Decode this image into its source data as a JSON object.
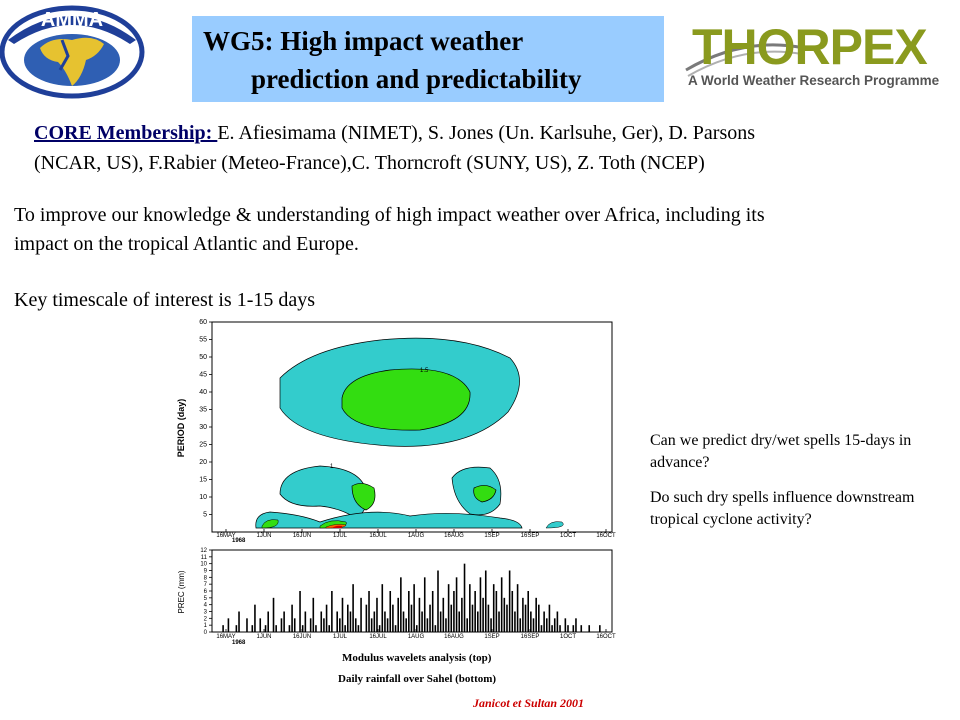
{
  "header": {
    "amma_logo_text": "AMMA",
    "title_line1": "WG5: High impact weather",
    "title_line2": "prediction and predictability",
    "thorpex_logo": "THORPEX",
    "thorpex_tagline": "A World Weather Research Programme"
  },
  "membership": {
    "label": "CORE Membership: ",
    "line1": "E. Afiesimama (NIMET), S. Jones (Un. Karlsuhe, Ger), D. Parsons",
    "line2": "(NCAR, US), F.Rabier (Meteo-France),C. Thorncroft (SUNY, US),  Z. Toth (NCEP)"
  },
  "objective": {
    "line1": "To improve our knowledge & understanding of high impact weather over Africa, including its",
    "line2": "impact on the tropical Atlantic and Europe.",
    "timescale": "Key timescale of interest is 1-15 days"
  },
  "questions": {
    "q1_line1": "Can we predict dry/wet spells 15-days in",
    "q1_line2": "advance?",
    "q2_line1": "Do such dry spells influence downstream",
    "q2_line2": "tropical cyclone activity?"
  },
  "figure": {
    "caption_top": "Modulus wavelets analysis (top)",
    "caption_bottom": "Daily rainfall over Sahel (bottom)",
    "credit": "Janicot et Sultan 2001"
  },
  "chart_data": [
    {
      "type": "heatmap",
      "ylabel": "PERIOD (day)",
      "yticks": [
        5,
        10,
        15,
        20,
        25,
        30,
        35,
        40,
        45,
        50,
        55,
        60
      ],
      "ylim": [
        0,
        60
      ],
      "xticks": [
        "16MAY",
        "1JUN",
        "16JUN",
        "1JUL",
        "16JUL",
        "1AUG",
        "16AUG",
        "1SEP",
        "16SEP",
        "1OCT",
        "16OCT"
      ],
      "xsub": "1968",
      "contour_labels": [
        "1",
        "1.5"
      ],
      "colors": {
        "level1": "#33cccc",
        "level2": "#33dd11",
        "high": "#ff6600",
        "extreme": "#cc0000"
      }
    },
    {
      "type": "bar",
      "ylabel": "PREC (mm)",
      "yticks": [
        0,
        1,
        2,
        3,
        4,
        5,
        6,
        7,
        8,
        9,
        10,
        11,
        12
      ],
      "ylim": [
        0,
        12
      ],
      "xticks": [
        "16MAY",
        "1JUN",
        "16JUN",
        "1JUL",
        "16JUL",
        "1AUG",
        "16AUG",
        "1SEP",
        "16SEP",
        "1OCT",
        "16OCT"
      ],
      "xsub": "1968",
      "values": [
        0,
        0,
        1,
        0,
        2,
        0,
        0,
        1,
        3,
        0,
        0,
        2,
        0,
        1,
        4,
        0,
        2,
        0,
        1,
        3,
        0,
        5,
        1,
        0,
        2,
        3,
        0,
        1,
        4,
        2,
        0,
        6,
        1,
        3,
        0,
        2,
        5,
        1,
        0,
        3,
        2,
        4,
        1,
        6,
        0,
        3,
        2,
        5,
        1,
        4,
        3,
        7,
        2,
        1,
        5,
        0,
        4,
        6,
        2,
        3,
        5,
        1,
        7,
        3,
        2,
        6,
        4,
        1,
        5,
        8,
        3,
        2,
        6,
        4,
        7,
        1,
        5,
        3,
        8,
        2,
        4,
        6,
        1,
        9,
        3,
        5,
        2,
        7,
        4,
        6,
        8,
        3,
        5,
        10,
        2,
        7,
        4,
        6,
        3,
        8,
        5,
        9,
        4,
        2,
        7,
        6,
        3,
        8,
        5,
        4,
        9,
        6,
        3,
        7,
        2,
        5,
        4,
        6,
        3,
        2,
        5,
        4,
        1,
        3,
        2,
        4,
        1,
        2,
        3,
        1,
        0,
        2,
        1,
        0,
        1,
        2,
        0,
        1,
        0,
        0,
        1,
        0,
        0,
        0,
        1,
        0,
        0
      ]
    }
  ]
}
